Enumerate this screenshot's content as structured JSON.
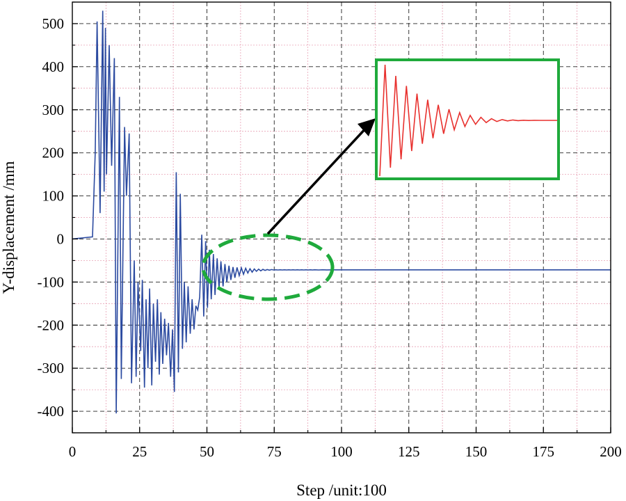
{
  "chart_data": {
    "type": "line",
    "title": "",
    "xlabel": "Step /unit:100",
    "ylabel": "Y-displacement /mm",
    "xlim": [
      0,
      200
    ],
    "ylim": [
      -450,
      550
    ],
    "xticks": [
      0,
      25,
      50,
      75,
      100,
      125,
      150,
      175,
      200
    ],
    "yticks": [
      -400,
      -300,
      -200,
      -100,
      0,
      100,
      200,
      300,
      400,
      500
    ],
    "grid": true,
    "legend": "none",
    "colors": {
      "series": "#2b4aa0",
      "inset_series": "#e8312e",
      "highlight": "#1faa3c",
      "arrow": "#000000"
    },
    "series": [
      {
        "x": [
          0,
          7.5,
          8.5,
          9.2,
          10.3,
          11.3,
          11.8,
          12.3,
          12.7,
          13.7,
          14.6,
          15.6,
          16.3,
          17.5,
          18.2,
          19.4,
          20.1,
          21.1,
          22.0,
          23.0,
          23.7,
          24.4,
          25.4,
          26.0,
          26.8,
          27.4,
          28.1,
          28.7,
          29.5,
          30.1,
          30.9,
          31.6,
          32.3,
          32.9,
          33.6,
          34.3,
          35.0,
          35.7,
          36.5,
          37.2,
          37.9,
          38.6,
          39.4,
          40.1,
          40.9,
          41.6,
          42.3,
          43.0,
          43.8,
          44.5,
          45.2,
          45.9,
          46.6,
          47.3,
          48.1,
          48.8,
          49.5,
          50.2,
          50.9,
          51.6,
          52.4,
          53.0,
          53.8,
          54.5,
          55.2,
          56.0,
          56.7,
          57.4,
          58.2,
          58.9,
          59.7,
          60.4,
          61.2,
          62.0,
          62.8,
          63.6,
          64.4,
          65.2,
          66.0,
          66.8,
          67.6,
          68.4,
          69.2,
          70.0,
          70.8,
          71.6,
          72.4,
          73.2,
          74.0,
          74.8,
          75.6,
          76.4,
          77.2,
          78.0,
          78.8,
          79.6,
          80.4,
          81.2,
          82.0,
          82.8,
          83.6,
          84.4,
          85.2,
          86.0,
          86.8,
          87.6,
          88.4,
          89.2,
          90.0,
          91.5,
          93.0,
          94.5,
          96.0,
          100,
          120,
          150,
          200
        ],
        "y": [
          0,
          5,
          200,
          505,
          60,
          530,
          110,
          490,
          150,
          450,
          170,
          420,
          -405,
          330,
          -325,
          260,
          100,
          245,
          -335,
          -50,
          -320,
          -100,
          -260,
          -95,
          -345,
          -140,
          -300,
          -115,
          -340,
          -150,
          -285,
          -140,
          -315,
          -170,
          -290,
          -185,
          -270,
          -195,
          -320,
          -210,
          -355,
          155,
          -310,
          105,
          -255,
          -100,
          -240,
          -110,
          -220,
          -140,
          -210,
          -155,
          -165,
          -135,
          10,
          -180,
          -5,
          -160,
          -25,
          -140,
          -35,
          -130,
          -45,
          -115,
          -52,
          -110,
          -58,
          -100,
          -62,
          -95,
          -65,
          -90,
          -66,
          -85,
          -67,
          -82,
          -68,
          -79,
          -69,
          -77,
          -69.5,
          -75,
          -70,
          -74,
          -70.5,
          -73,
          -71,
          -72.5,
          -71,
          -72,
          -71.5,
          -72,
          -71.5,
          -72,
          -71.5,
          -72,
          -71.5,
          -72,
          -71.5,
          -72,
          -71.5,
          -72,
          -71.5,
          -72,
          -71.5,
          -72,
          -71.5,
          -72,
          -71.5,
          -72,
          -71.5,
          -71.8,
          -71.7,
          -71.7,
          -71.7,
          -71.7,
          -71.7
        ]
      }
    ],
    "inset": {
      "description_source": "zoom of oscillation decay highlighted by ellipse",
      "x": [
        0,
        0.03,
        0.06,
        0.09,
        0.12,
        0.15,
        0.18,
        0.21,
        0.24,
        0.27,
        0.3,
        0.33,
        0.36,
        0.39,
        0.42,
        0.45,
        0.48,
        0.51,
        0.54,
        0.57,
        0.6,
        0.63,
        0.66,
        0.69,
        0.72,
        0.75,
        0.78,
        0.81,
        0.84,
        0.87,
        0.9,
        0.93,
        0.96,
        1.0
      ],
      "y": [
        -1.0,
        1.0,
        -0.85,
        0.8,
        -0.7,
        0.62,
        -0.55,
        0.48,
        -0.42,
        0.37,
        -0.32,
        0.28,
        -0.24,
        0.2,
        -0.17,
        0.14,
        -0.11,
        0.09,
        -0.07,
        0.055,
        -0.04,
        0.03,
        -0.02,
        0.015,
        -0.01,
        0.007,
        -0.005,
        0.003,
        -0.002,
        0.001,
        0,
        0,
        0,
        0
      ]
    }
  }
}
